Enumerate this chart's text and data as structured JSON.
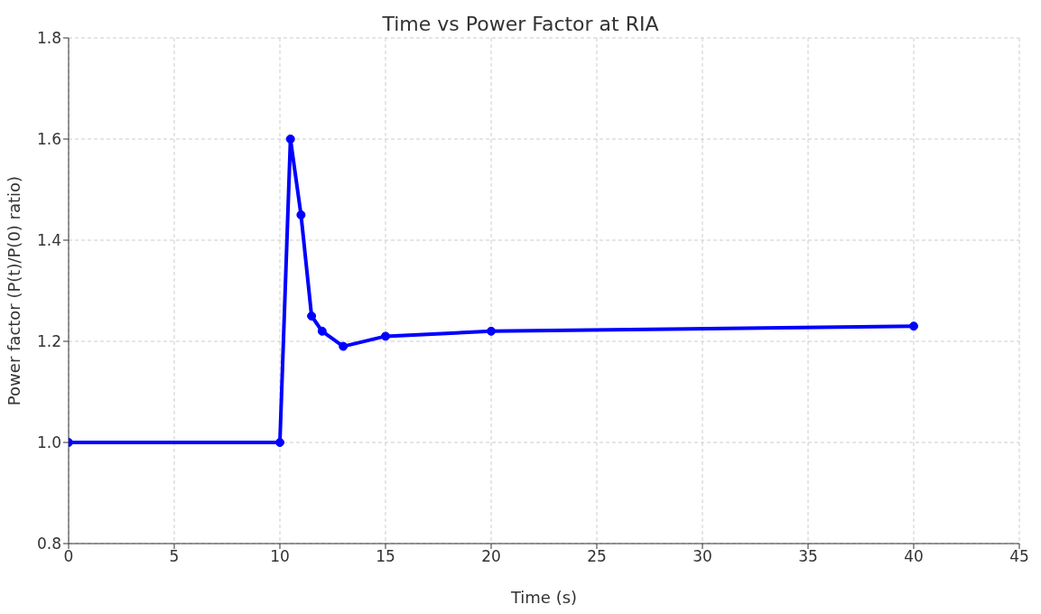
{
  "chart_data": {
    "type": "line",
    "title": "Time vs Power Factor at RIA",
    "xlabel": "Time (s)",
    "ylabel": "Power factor (P(t)/P(0) ratio)",
    "x": [
      0,
      10,
      10.5,
      11,
      11.5,
      12,
      13,
      15,
      20,
      40
    ],
    "series": [
      {
        "color": "#0000ff",
        "values": [
          1.0,
          1.0,
          1.6,
          1.45,
          1.25,
          1.22,
          1.19,
          1.21,
          1.22,
          1.23
        ]
      }
    ],
    "xlim": [
      0,
      45
    ],
    "xticks": [
      0,
      5,
      10,
      15,
      20,
      25,
      30,
      35,
      40,
      45
    ],
    "ylim": [
      0.8,
      1.8
    ],
    "yticks": [
      {
        "value": 0.8,
        "label": "0.8"
      },
      {
        "value": 1,
        "label": "1.0"
      },
      {
        "value": 1.2,
        "label": "1.2"
      },
      {
        "value": 1.4,
        "label": "1.4"
      },
      {
        "value": 1.6,
        "label": "1.6"
      },
      {
        "value": 1.8,
        "label": "1.8"
      }
    ],
    "grid": true,
    "marker": "circle",
    "line_style": "solid"
  }
}
